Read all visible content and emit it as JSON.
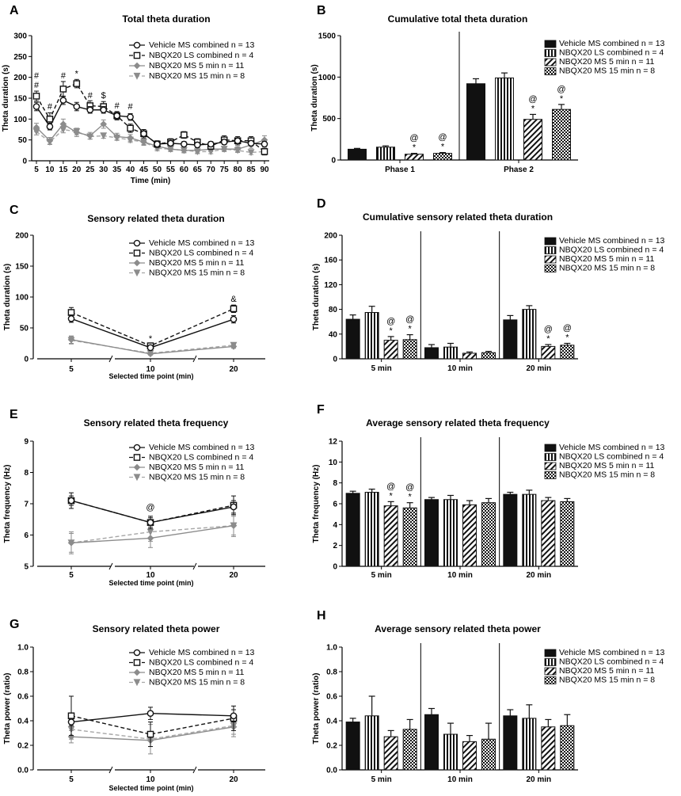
{
  "legend": {
    "vehicle": "Vehicle MS combined n = 13",
    "nbqx_ls": "NBQX20 LS combined n = 4",
    "nbqx_ms5": "NBQX20 MS 5 min n = 11",
    "nbqx_ms15": "NBQX20 MS 15 min  n = 8"
  },
  "colors": {
    "black": "#111111",
    "gray": "#8c8c8c",
    "gray2": "#a6a6a6"
  },
  "chart_data": [
    {
      "panel": "A",
      "type": "line",
      "title": "Total theta duration",
      "xlabel": "Time (min)",
      "ylabel": "Theta duration (s)",
      "ylim": [
        0,
        300
      ],
      "yticks": [
        0,
        50,
        100,
        150,
        200,
        250,
        300
      ],
      "x": [
        5,
        10,
        15,
        20,
        25,
        30,
        35,
        40,
        45,
        50,
        55,
        60,
        65,
        70,
        75,
        80,
        85,
        90
      ],
      "series": [
        {
          "name": "Vehicle MS combined n = 13",
          "values": [
            130,
            82,
            145,
            130,
            122,
            122,
            108,
            105,
            65,
            40,
            42,
            40,
            38,
            40,
            45,
            48,
            42,
            40
          ],
          "err": [
            10,
            8,
            10,
            10,
            8,
            8,
            8,
            8,
            6,
            6,
            6,
            6,
            6,
            6,
            6,
            6,
            6,
            6
          ]
        },
        {
          "name": "NBQX20 LS combined n = 4",
          "values": [
            155,
            100,
            172,
            185,
            132,
            130,
            108,
            78,
            65,
            40,
            45,
            62,
            45,
            35,
            50,
            48,
            48,
            22
          ],
          "err": [
            12,
            15,
            18,
            10,
            12,
            12,
            10,
            10,
            10,
            8,
            8,
            8,
            8,
            8,
            10,
            10,
            10,
            8
          ]
        },
        {
          "name": "NBQX20 MS 5 min n = 11",
          "values": [
            80,
            48,
            88,
            68,
            60,
            88,
            58,
            55,
            45,
            35,
            28,
            25,
            25,
            28,
            28,
            28,
            38,
            50
          ],
          "err": [
            10,
            8,
            12,
            10,
            8,
            10,
            8,
            8,
            8,
            8,
            6,
            6,
            6,
            6,
            6,
            6,
            8,
            10
          ]
        },
        {
          "name": "NBQX20 MS 15 min  n = 8",
          "values": [
            70,
            45,
            75,
            70,
            58,
            60,
            55,
            50,
            45,
            30,
            28,
            25,
            22,
            22,
            28,
            25,
            20,
            22
          ],
          "err": [
            8,
            6,
            8,
            8,
            6,
            6,
            6,
            6,
            6,
            6,
            5,
            5,
            5,
            5,
            5,
            5,
            5,
            5
          ]
        }
      ],
      "annotations": [
        {
          "x": 5,
          "text": "#",
          "y": 175
        },
        {
          "x": 5,
          "text": "#",
          "y": 197
        },
        {
          "x": 10,
          "text": "#",
          "y": 123
        },
        {
          "x": 15,
          "text": "#",
          "y": 197
        },
        {
          "x": 20,
          "text": "*",
          "y": 202
        },
        {
          "x": 25,
          "text": "#",
          "y": 150
        },
        {
          "x": 30,
          "text": "$",
          "y": 150
        },
        {
          "x": 35,
          "text": "#",
          "y": 125
        },
        {
          "x": 40,
          "text": "#",
          "y": 123
        }
      ]
    },
    {
      "panel": "B",
      "type": "bar",
      "title": "Cumulative total theta duration",
      "ylabel": "Theta duration (s)",
      "ylim": [
        0,
        1500
      ],
      "yticks": [
        0,
        500,
        1000,
        1500
      ],
      "categories": [
        "Phase 1",
        "Phase 2"
      ],
      "series": [
        {
          "name": "Vehicle MS combined n = 13",
          "values": [
            130,
            920
          ],
          "err": [
            10,
            60
          ]
        },
        {
          "name": "NBQX20 LS combined n = 4",
          "values": [
            155,
            990
          ],
          "err": [
            15,
            60
          ]
        },
        {
          "name": "NBQX20 MS 5 min n = 11",
          "values": [
            70,
            490
          ],
          "err": [
            10,
            60
          ]
        },
        {
          "name": "NBQX20 MS 15 min  n = 8",
          "values": [
            80,
            610
          ],
          "err": [
            10,
            60
          ]
        }
      ],
      "annotations": [
        {
          "group": 0,
          "bar": 2,
          "text": "*"
        },
        {
          "group": 0,
          "bar": 2,
          "text": "@"
        },
        {
          "group": 0,
          "bar": 3,
          "text": "*"
        },
        {
          "group": 0,
          "bar": 3,
          "text": "@"
        },
        {
          "group": 1,
          "bar": 2,
          "text": "*"
        },
        {
          "group": 1,
          "bar": 2,
          "text": "@"
        },
        {
          "group": 1,
          "bar": 3,
          "text": "*"
        },
        {
          "group": 1,
          "bar": 3,
          "text": "@"
        }
      ]
    },
    {
      "panel": "C",
      "type": "line",
      "title": "Sensory related theta duration",
      "xlabel": "Selected time point (min)",
      "ylabel": "Theta duration (s)",
      "ylim": [
        0,
        200
      ],
      "yticks": [
        0,
        50,
        100,
        150,
        200
      ],
      "x": [
        5,
        10,
        20
      ],
      "series": [
        {
          "name": "Vehicle MS combined n = 13",
          "values": [
            65,
            18,
            64
          ],
          "err": [
            6,
            3,
            6
          ]
        },
        {
          "name": "NBQX20 LS combined n = 4",
          "values": [
            75,
            21,
            81
          ],
          "err": [
            8,
            3,
            6
          ]
        },
        {
          "name": "NBQX20 MS 5 min n = 11",
          "values": [
            31,
            8,
            20
          ],
          "err": [
            6,
            2,
            3
          ]
        },
        {
          "name": "NBQX20 MS 15 min  n = 8",
          "values": [
            30,
            9,
            22
          ],
          "err": [
            6,
            2,
            3
          ]
        }
      ],
      "annotations": [
        {
          "x": 10,
          "text": "*",
          "y": 28
        },
        {
          "x": 20,
          "text": "&",
          "y": 92
        }
      ]
    },
    {
      "panel": "D",
      "type": "bar",
      "title": "Cumulative sensory related theta duration",
      "ylabel": "Theta duration (s)",
      "ylim": [
        0,
        200
      ],
      "yticks": [
        0,
        40,
        80,
        120,
        160,
        200
      ],
      "categories": [
        "5 min",
        "10 min",
        "20 min"
      ],
      "series": [
        {
          "name": "Vehicle MS combined n = 13",
          "values": [
            64,
            18,
            63
          ],
          "err": [
            7,
            5,
            7
          ]
        },
        {
          "name": "NBQX20 LS combined n = 4",
          "values": [
            75,
            19,
            80
          ],
          "err": [
            10,
            6,
            6
          ]
        },
        {
          "name": "NBQX20 MS 5 min n = 11",
          "values": [
            30,
            9,
            20
          ],
          "err": [
            6,
            2,
            3
          ]
        },
        {
          "name": "NBQX20 MS 15 min  n = 8",
          "values": [
            31,
            10,
            22
          ],
          "err": [
            8,
            2,
            3
          ]
        }
      ],
      "annotations": [
        {
          "group": 0,
          "bar": 2,
          "text": "*"
        },
        {
          "group": 0,
          "bar": 2,
          "text": "@"
        },
        {
          "group": 0,
          "bar": 3,
          "text": "*"
        },
        {
          "group": 0,
          "bar": 3,
          "text": "@"
        },
        {
          "group": 2,
          "bar": 2,
          "text": "*"
        },
        {
          "group": 2,
          "bar": 2,
          "text": "@"
        },
        {
          "group": 2,
          "bar": 3,
          "text": "*"
        },
        {
          "group": 2,
          "bar": 3,
          "text": "@"
        }
      ]
    },
    {
      "panel": "E",
      "type": "line",
      "title": "Sensory related theta frequency",
      "xlabel": "Selected time point (min)",
      "ylabel": "Theta frequency (Hz)",
      "ylim": [
        5,
        9
      ],
      "yticks": [
        5,
        6,
        7,
        8,
        9
      ],
      "x": [
        5,
        10,
        20
      ],
      "series": [
        {
          "name": "Vehicle MS combined n = 13",
          "values": [
            7.1,
            6.4,
            6.9
          ],
          "err": [
            0.15,
            0.15,
            0.2
          ]
        },
        {
          "name": "NBQX20 LS combined n = 4",
          "values": [
            7.1,
            6.4,
            6.95
          ],
          "err": [
            0.25,
            0.2,
            0.3
          ]
        },
        {
          "name": "NBQX20 MS 5 min n = 11",
          "values": [
            5.75,
            5.9,
            6.3
          ],
          "err": [
            0.35,
            0.3,
            0.35
          ]
        },
        {
          "name": "NBQX20 MS 15 min  n = 8",
          "values": [
            5.75,
            6.1,
            6.3
          ],
          "err": [
            0.3,
            0.3,
            0.3
          ]
        }
      ],
      "annotations": [
        {
          "x": 10,
          "text": "@",
          "y": 6.8
        }
      ]
    },
    {
      "panel": "F",
      "type": "bar",
      "title": "Average sensory related theta frequency",
      "ylabel": "Theta frequency (Hz)",
      "ylim": [
        0,
        12
      ],
      "yticks": [
        0,
        2,
        4,
        6,
        8,
        10,
        12
      ],
      "categories": [
        "5 min",
        "10 min",
        "20 min"
      ],
      "series": [
        {
          "name": "Vehicle MS combined n = 13",
          "values": [
            7.0,
            6.4,
            6.9
          ],
          "err": [
            0.2,
            0.2,
            0.2
          ]
        },
        {
          "name": "NBQX20 LS combined n = 4",
          "values": [
            7.1,
            6.4,
            6.9
          ],
          "err": [
            0.3,
            0.4,
            0.4
          ]
        },
        {
          "name": "NBQX20 MS 5 min n = 11",
          "values": [
            5.8,
            5.9,
            6.3
          ],
          "err": [
            0.4,
            0.4,
            0.3
          ]
        },
        {
          "name": "NBQX20 MS 15 min  n = 8",
          "values": [
            5.6,
            6.1,
            6.2
          ],
          "err": [
            0.5,
            0.4,
            0.3
          ]
        }
      ],
      "annotations": [
        {
          "group": 0,
          "bar": 2,
          "text": "*"
        },
        {
          "group": 0,
          "bar": 2,
          "text": "@"
        },
        {
          "group": 0,
          "bar": 3,
          "text": "*"
        },
        {
          "group": 0,
          "bar": 3,
          "text": "@"
        }
      ]
    },
    {
      "panel": "G",
      "type": "line",
      "title": "Sensory related theta power",
      "xlabel": "Selected time point (min)",
      "ylabel": "Theta power (ratio)",
      "ylim": [
        0,
        1.0
      ],
      "yticks": [
        0.0,
        0.2,
        0.4,
        0.6,
        0.8,
        1.0
      ],
      "x": [
        5,
        10,
        20
      ],
      "series": [
        {
          "name": "Vehicle MS combined n = 13",
          "values": [
            0.39,
            0.46,
            0.44
          ],
          "err": [
            0.03,
            0.05,
            0.05
          ]
        },
        {
          "name": "NBQX20 LS combined n = 4",
          "values": [
            0.44,
            0.29,
            0.42
          ],
          "err": [
            0.16,
            0.1,
            0.1
          ]
        },
        {
          "name": "NBQX20 MS 5 min n = 11",
          "values": [
            0.27,
            0.24,
            0.35
          ],
          "err": [
            0.05,
            0.05,
            0.06
          ]
        },
        {
          "name": "NBQX20 MS 15 min  n = 8",
          "values": [
            0.33,
            0.25,
            0.36
          ],
          "err": [
            0.08,
            0.12,
            0.09
          ]
        }
      ],
      "annotations": []
    },
    {
      "panel": "H",
      "type": "bar",
      "title": "Average sensory related theta power",
      "ylabel": "Theta power (ratio)",
      "ylim": [
        0,
        1.0
      ],
      "yticks": [
        0.0,
        0.2,
        0.4,
        0.6,
        0.8,
        1.0
      ],
      "categories": [
        "5 min",
        "10 min",
        "20 min"
      ],
      "series": [
        {
          "name": "Vehicle MS combined n = 13",
          "values": [
            0.39,
            0.45,
            0.44
          ],
          "err": [
            0.03,
            0.05,
            0.05
          ]
        },
        {
          "name": "NBQX20 LS combined n = 4",
          "values": [
            0.44,
            0.29,
            0.42
          ],
          "err": [
            0.16,
            0.09,
            0.11
          ]
        },
        {
          "name": "NBQX20 MS 5 min n = 11",
          "values": [
            0.27,
            0.23,
            0.35
          ],
          "err": [
            0.05,
            0.05,
            0.06
          ]
        },
        {
          "name": "NBQX20 MS 15 min  n = 8",
          "values": [
            0.33,
            0.25,
            0.36
          ],
          "err": [
            0.08,
            0.13,
            0.09
          ]
        }
      ],
      "annotations": []
    }
  ]
}
